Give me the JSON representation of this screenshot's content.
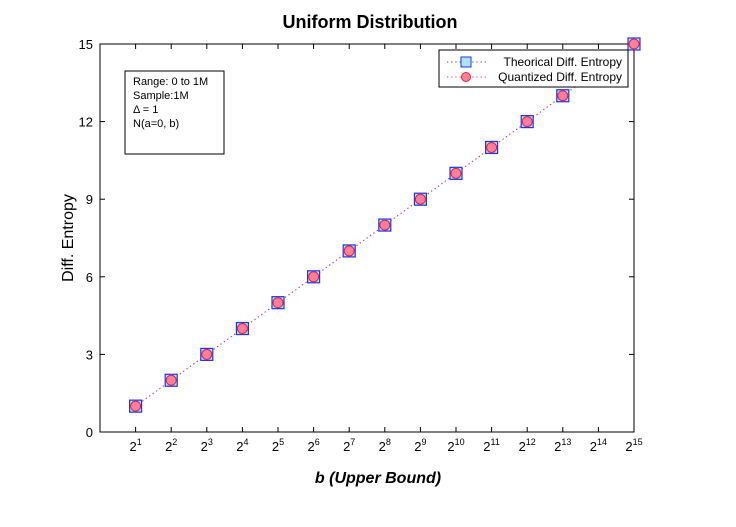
{
  "chart_data": {
    "type": "scatter",
    "title": "Uniform Distribution",
    "xlabel": "b (Upper Bound)",
    "ylabel": "Diff. Entropy",
    "x_tick_labels": [
      {
        "base": "2",
        "exp": "1"
      },
      {
        "base": "2",
        "exp": "2"
      },
      {
        "base": "2",
        "exp": "3"
      },
      {
        "base": "2",
        "exp": "4"
      },
      {
        "base": "2",
        "exp": "5"
      },
      {
        "base": "2",
        "exp": "6"
      },
      {
        "base": "2",
        "exp": "7"
      },
      {
        "base": "2",
        "exp": "8"
      },
      {
        "base": "2",
        "exp": "9"
      },
      {
        "base": "2",
        "exp": "10"
      },
      {
        "base": "2",
        "exp": "11"
      },
      {
        "base": "2",
        "exp": "12"
      },
      {
        "base": "2",
        "exp": "13"
      },
      {
        "base": "2",
        "exp": "14"
      },
      {
        "base": "2",
        "exp": "15"
      }
    ],
    "x_exponents": [
      1,
      2,
      3,
      4,
      5,
      6,
      7,
      8,
      9,
      10,
      11,
      12,
      13,
      14,
      15
    ],
    "xlim_exponent": [
      0,
      15
    ],
    "ylim": [
      0,
      15
    ],
    "y_ticks": [
      0,
      3,
      6,
      9,
      12,
      15
    ],
    "grid": false,
    "legend_position": "top-right",
    "series": [
      {
        "name": "Theorical Diff. Entropy",
        "marker": "square",
        "line": "dotted",
        "line_color": "#3333ff",
        "marker_fill": "#aee4f5",
        "marker_edge": "#2233ee",
        "x_exponents": [
          1,
          2,
          3,
          4,
          5,
          6,
          7,
          8,
          9,
          10,
          11,
          12,
          13,
          15
        ],
        "values": [
          1,
          2,
          3,
          4,
          5,
          6,
          7,
          8,
          9,
          10,
          11,
          12,
          13,
          15
        ]
      },
      {
        "name": "Quantized Diff. Entropy",
        "marker": "circle",
        "line": "dotted",
        "line_color": "#ff3355",
        "marker_fill": "#ff7f99",
        "marker_edge": "#dd2244",
        "x_exponents": [
          1,
          2,
          3,
          4,
          5,
          6,
          7,
          8,
          9,
          10,
          11,
          12,
          13,
          15
        ],
        "values": [
          1,
          2,
          3,
          4,
          5,
          6,
          7,
          8,
          9,
          10,
          11,
          12,
          13,
          15
        ]
      }
    ],
    "annotation_lines": [
      "Range: 0 to 1M",
      "Sample:1M",
      "Δ = 1",
      "N(a=0, b)"
    ]
  }
}
